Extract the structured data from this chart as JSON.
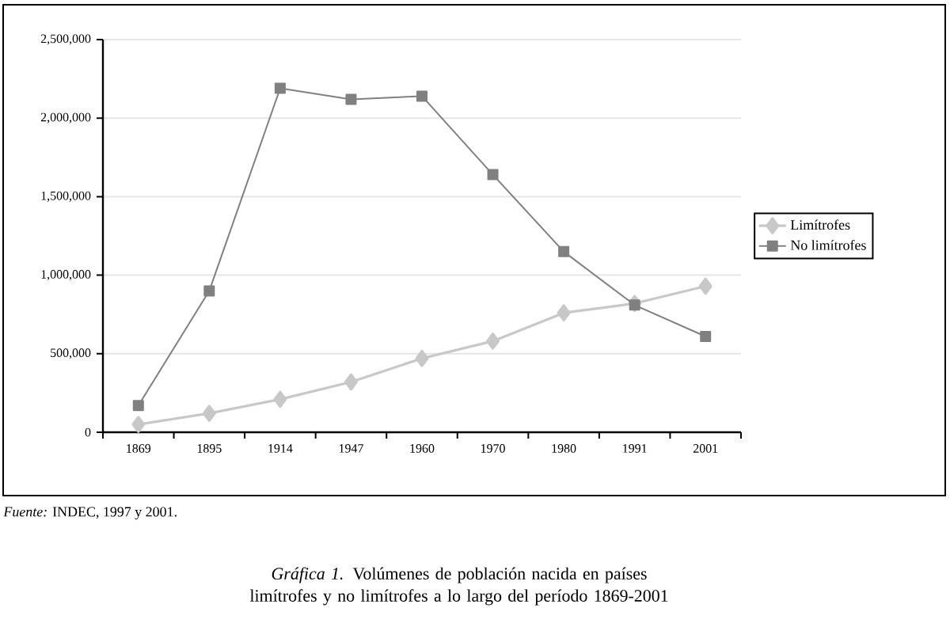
{
  "chart_data": {
    "type": "line",
    "categories": [
      "1869",
      "1895",
      "1914",
      "1947",
      "1960",
      "1970",
      "1980",
      "1991",
      "2001"
    ],
    "series": [
      {
        "name": "Limítrofes",
        "color": "#c8c8c8",
        "marker": "diamond",
        "values": [
          50000,
          120000,
          210000,
          320000,
          470000,
          580000,
          760000,
          820000,
          930000
        ]
      },
      {
        "name": "No limítrofes",
        "color": "#808080",
        "marker": "square",
        "values": [
          170000,
          900000,
          2190000,
          2120000,
          2140000,
          1640000,
          1150000,
          810000,
          610000
        ]
      }
    ],
    "ylim": [
      0,
      2500000
    ],
    "yticks": [
      {
        "value": 0,
        "label": "0"
      },
      {
        "value": 500000,
        "label": "500,000"
      },
      {
        "value": 1000000,
        "label": "1,000,000"
      },
      {
        "value": 1500000,
        "label": "1,500,000"
      },
      {
        "value": 2000000,
        "label": "2,000,000"
      },
      {
        "value": 2500000,
        "label": "2,500,000"
      }
    ],
    "grid": "y",
    "legend": "right",
    "line_style": "solid",
    "annotations": [
      "*Fuente:* INDEC, 1997 y 2001.",
      "*Gráfica 1.* Volúmenes de población nacida en países limítrofes y no limítrofes a lo largo del período 1869-2001"
    ]
  }
}
